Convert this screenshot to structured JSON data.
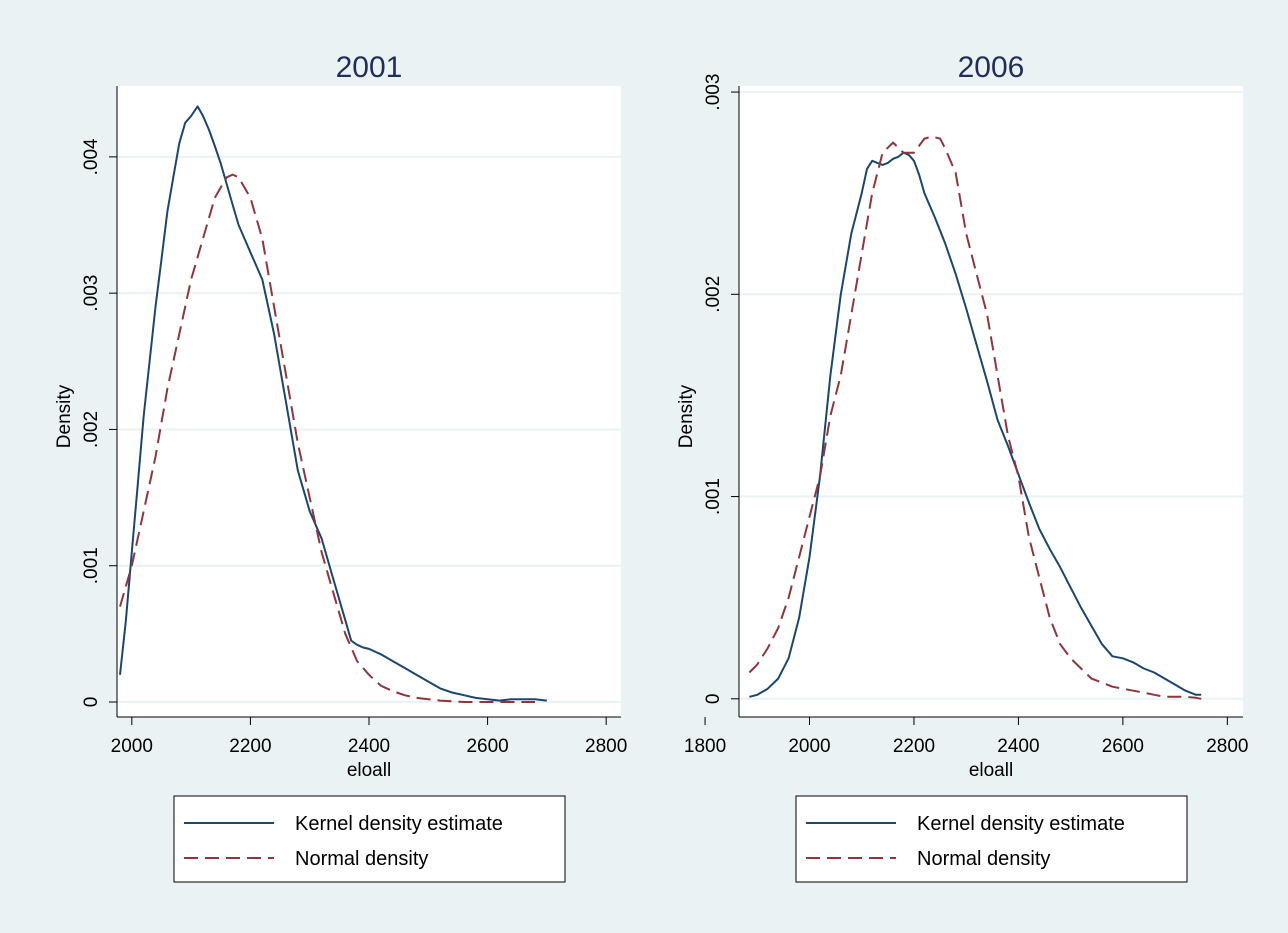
{
  "chart_data": [
    {
      "type": "line",
      "title": "2001",
      "xlabel": "eloall",
      "ylabel": "Density",
      "xlim": [
        1975,
        2825
      ],
      "ylim": [
        -0.00011,
        0.00452
      ],
      "xticks": [
        2000,
        2200,
        2400,
        2600,
        2800
      ],
      "xtick_labels": [
        "2000",
        "2200",
        "2400",
        "2600",
        "2800"
      ],
      "yticks": [
        0,
        0.001,
        0.002,
        0.003,
        0.004
      ],
      "ytick_labels": [
        "0",
        ".001",
        ".002",
        ".003",
        ".004"
      ],
      "grid": true,
      "legend_position": "bottom",
      "series": [
        {
          "name": "Kernel density estimate",
          "color": "#1a476f",
          "dash": "solid",
          "x": [
            1980,
            1990,
            2000,
            2010,
            2020,
            2030,
            2040,
            2050,
            2060,
            2070,
            2080,
            2090,
            2100,
            2111,
            2120,
            2130,
            2140,
            2150,
            2160,
            2170,
            2180,
            2190,
            2200,
            2220,
            2240,
            2260,
            2280,
            2300,
            2320,
            2340,
            2360,
            2370,
            2380,
            2390,
            2400,
            2420,
            2440,
            2460,
            2480,
            2500,
            2520,
            2540,
            2560,
            2580,
            2600,
            2620,
            2640,
            2660,
            2680,
            2700
          ],
          "y": [
            0.0002,
            0.0006,
            0.0011,
            0.0016,
            0.0021,
            0.0025,
            0.0029,
            0.00325,
            0.0036,
            0.00385,
            0.0041,
            0.00425,
            0.0043,
            0.00437,
            0.0043,
            0.0042,
            0.00408,
            0.00395,
            0.0038,
            0.00365,
            0.0035,
            0.0034,
            0.0033,
            0.0031,
            0.0027,
            0.0022,
            0.0017,
            0.0014,
            0.0012,
            0.0009,
            0.0006,
            0.00045,
            0.00042,
            0.0004,
            0.00039,
            0.00035,
            0.0003,
            0.00025,
            0.0002,
            0.00015,
            0.0001,
            7e-05,
            5e-05,
            3e-05,
            2e-05,
            1e-05,
            2e-05,
            2e-05,
            2e-05,
            1e-05
          ]
        },
        {
          "name": "Normal density",
          "color": "#90353b",
          "dash": "dashed",
          "x": [
            1980,
            2000,
            2020,
            2040,
            2060,
            2080,
            2100,
            2120,
            2140,
            2160,
            2170,
            2180,
            2200,
            2220,
            2240,
            2260,
            2280,
            2300,
            2320,
            2340,
            2360,
            2380,
            2400,
            2420,
            2440,
            2460,
            2480,
            2500,
            2520,
            2540,
            2560,
            2580,
            2600,
            2620,
            2640,
            2660,
            2680
          ],
          "y": [
            0.0007,
            0.001,
            0.0014,
            0.0018,
            0.0023,
            0.0027,
            0.0031,
            0.0034,
            0.0037,
            0.00385,
            0.00387,
            0.00385,
            0.0037,
            0.0034,
            0.0029,
            0.0024,
            0.0019,
            0.0015,
            0.0011,
            0.0008,
            0.0005,
            0.0003,
            0.0002,
            0.00012,
            8e-05,
            5e-05,
            3e-05,
            2e-05,
            1e-05,
            5e-06,
            0,
            0,
            0,
            0,
            0,
            0,
            0
          ]
        }
      ],
      "legend": [
        "Kernel density estimate",
        "Normal density"
      ]
    },
    {
      "type": "line",
      "title": "2006",
      "xlabel": "eloall",
      "ylabel": "Density",
      "xlim": [
        1865,
        2830
      ],
      "ylim": [
        -9e-05,
        0.00303
      ],
      "xticks": [
        1800,
        2000,
        2200,
        2400,
        2600,
        2800
      ],
      "xtick_labels": [
        "1800",
        "2000",
        "2200",
        "2400",
        "2600",
        "2800"
      ],
      "yticks": [
        0,
        0.001,
        0.002,
        0.003
      ],
      "ytick_labels": [
        "0",
        ".001",
        ".002",
        ".003"
      ],
      "grid": true,
      "legend_position": "bottom",
      "series": [
        {
          "name": "Kernel density estimate",
          "color": "#1a476f",
          "dash": "solid",
          "x": [
            1885,
            1900,
            1920,
            1940,
            1960,
            1980,
            2000,
            2020,
            2040,
            2060,
            2080,
            2100,
            2110,
            2120,
            2130,
            2140,
            2150,
            2160,
            2170,
            2180,
            2190,
            2200,
            2210,
            2220,
            2240,
            2260,
            2280,
            2300,
            2320,
            2340,
            2360,
            2380,
            2400,
            2420,
            2440,
            2460,
            2480,
            2500,
            2520,
            2540,
            2560,
            2580,
            2600,
            2620,
            2640,
            2660,
            2680,
            2700,
            2720,
            2740,
            2750
          ],
          "y": [
            1e-05,
            2e-05,
            5e-05,
            0.0001,
            0.0002,
            0.0004,
            0.0007,
            0.0011,
            0.0016,
            0.002,
            0.0023,
            0.0025,
            0.00262,
            0.00266,
            0.00265,
            0.00264,
            0.00265,
            0.00267,
            0.00268,
            0.0027,
            0.00269,
            0.00266,
            0.00259,
            0.0025,
            0.00238,
            0.00225,
            0.0021,
            0.00193,
            0.00175,
            0.00157,
            0.00138,
            0.00125,
            0.00111,
            0.00097,
            0.00084,
            0.00074,
            0.00065,
            0.00055,
            0.00045,
            0.00036,
            0.00027,
            0.00021,
            0.0002,
            0.00018,
            0.00015,
            0.00013,
            0.0001,
            7e-05,
            4e-05,
            2e-05,
            2e-05
          ]
        },
        {
          "name": "Normal density",
          "color": "#90353b",
          "dash": "dashed",
          "x": [
            1885,
            1900,
            1920,
            1940,
            1960,
            1980,
            2000,
            2020,
            2040,
            2060,
            2080,
            2100,
            2120,
            2140,
            2160,
            2180,
            2200,
            2220,
            2235,
            2250,
            2260,
            2280,
            2300,
            2320,
            2340,
            2360,
            2380,
            2400,
            2420,
            2440,
            2460,
            2480,
            2500,
            2520,
            2540,
            2560,
            2580,
            2600,
            2620,
            2640,
            2660,
            2680,
            2700,
            2720,
            2740,
            2750
          ],
          "y": [
            0.00013,
            0.00017,
            0.00025,
            0.00035,
            0.0005,
            0.0007,
            0.0009,
            0.0011,
            0.0014,
            0.0016,
            0.0019,
            0.0022,
            0.0025,
            0.0027,
            0.00275,
            0.0027,
            0.0027,
            0.00277,
            0.00278,
            0.00277,
            0.00272,
            0.0026,
            0.0023,
            0.0021,
            0.0019,
            0.0016,
            0.0013,
            0.0011,
            0.0008,
            0.0006,
            0.0004,
            0.00027,
            0.0002,
            0.00015,
            0.0001,
            8e-05,
            6e-05,
            5e-05,
            4e-05,
            3e-05,
            2e-05,
            1e-05,
            1e-05,
            1e-05,
            5e-06,
            0
          ]
        }
      ],
      "legend": [
        "Kernel density estimate",
        "Normal density"
      ]
    }
  ]
}
